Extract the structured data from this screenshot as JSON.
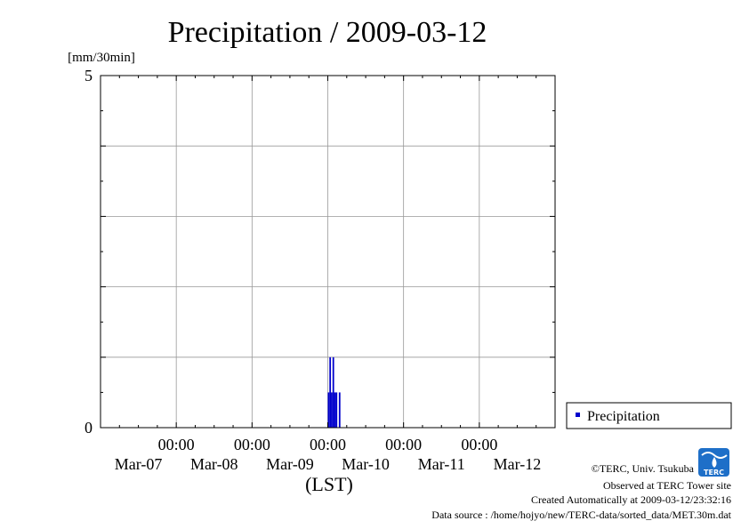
{
  "chart_data": {
    "type": "bar",
    "title": "Precipitation / 2009-03-12",
    "ylabel": "[mm/30min]",
    "xlabel": "(LST)",
    "ylim": [
      0,
      5
    ],
    "y_ticks": [
      0,
      5
    ],
    "grid": true,
    "legend_position": "right-bottom",
    "x_range_days": [
      "Mar-07",
      "Mar-13"
    ],
    "x_ticks": [
      {
        "time": "00:00",
        "date": "Mar-08"
      },
      {
        "time": "00:00",
        "date": "Mar-09"
      },
      {
        "time": "00:00",
        "date": "Mar-10"
      },
      {
        "time": "00:00",
        "date": "Mar-11"
      },
      {
        "time": "00:00",
        "date": "Mar-12"
      }
    ],
    "day_labels": [
      "Mar-07",
      "Mar-08",
      "Mar-09",
      "Mar-10",
      "Mar-11",
      "Mar-12"
    ],
    "series": [
      {
        "name": "Precipitation",
        "color": "#0000cc",
        "points": [
          {
            "t": "2009-03-10 00:00",
            "value": 0.5
          },
          {
            "t": "2009-03-10 00:30",
            "value": 1.0
          },
          {
            "t": "2009-03-10 01:00",
            "value": 0.5
          },
          {
            "t": "2009-03-10 01:30",
            "value": 1.0
          },
          {
            "t": "2009-03-10 02:00",
            "value": 0.5
          },
          {
            "t": "2009-03-10 02:30",
            "value": 0.5
          },
          {
            "t": "2009-03-10 03:00",
            "value": 0.0
          },
          {
            "t": "2009-03-10 03:30",
            "value": 0.5
          }
        ]
      }
    ]
  },
  "credits": {
    "copyright": "©TERC, Univ. Tsukuba",
    "site": "Observed at TERC Tower site",
    "created": "Created Automatically at 2009-03-12/23:32:16",
    "source": "Data source : /home/hojyo/new/TERC-data/sorted_data/MET.30m.dat"
  },
  "logo": {
    "text": "TERC",
    "color": "#1e6fc8"
  }
}
